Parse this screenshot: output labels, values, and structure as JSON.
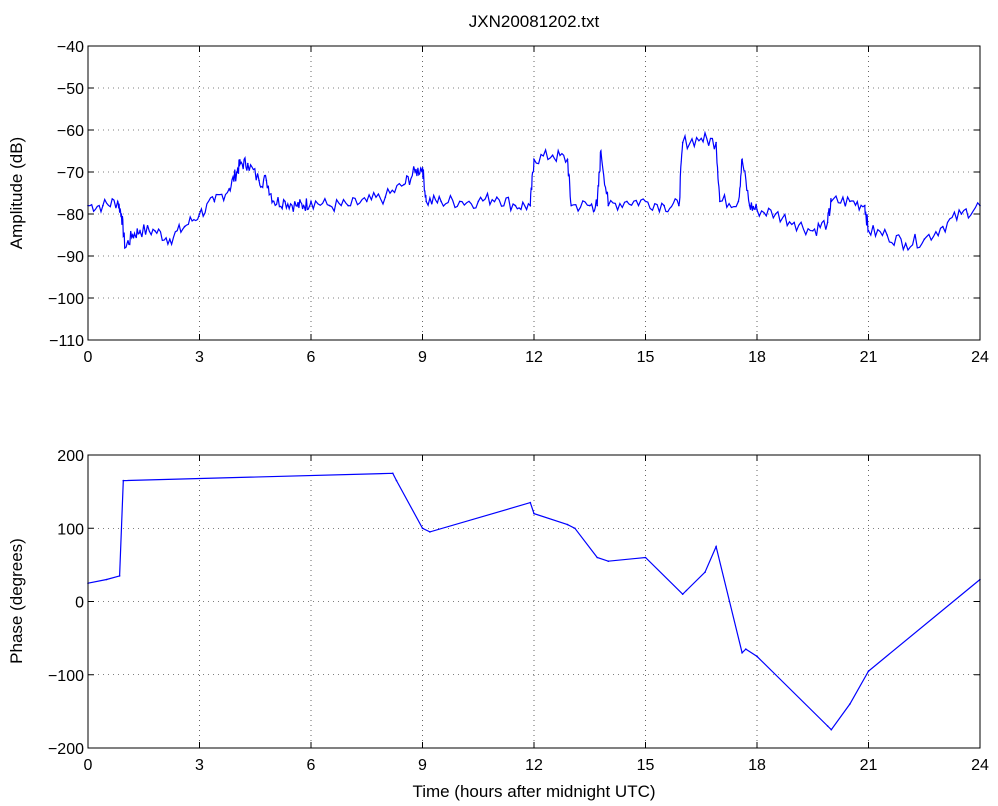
{
  "chart_data": [
    {
      "type": "line",
      "title": "JXN20081202.txt",
      "xlabel": "",
      "ylabel": "Amplitude (dB)",
      "xlim": [
        0,
        24
      ],
      "ylim": [
        -110,
        -40
      ],
      "xticks": [
        0,
        3,
        6,
        9,
        12,
        15,
        18,
        21,
        24
      ],
      "yticks": [
        -110,
        -100,
        -90,
        -80,
        -70,
        -60,
        -50,
        -40
      ],
      "xtick_labels": [
        "0",
        "3",
        "6",
        "9",
        "12",
        "15",
        "18",
        "21",
        "24"
      ],
      "ytick_labels": [
        "−110",
        "−100",
        "−90",
        "−80",
        "−70",
        "−60",
        "−50",
        "−40"
      ],
      "grid": true,
      "line_color": "#0000ff",
      "series": [
        {
          "x": [
            0,
            0.4,
            0.8,
            0.9,
            1.0,
            1.2,
            1.4,
            1.8,
            2.2,
            2.6,
            3.0,
            3.4,
            3.8,
            4.0,
            4.1,
            4.3,
            4.6,
            4.8,
            5.0,
            5.3,
            5.6,
            5.8,
            6.0,
            6.5,
            7.0,
            7.5,
            8.0,
            8.5,
            8.8,
            9.0,
            9.1,
            9.5,
            10.0,
            10.5,
            11.0,
            11.5,
            11.9,
            12.0,
            12.5,
            12.9,
            13.0,
            13.5,
            13.7,
            13.8,
            14.0,
            14.5,
            15.0,
            15.5,
            15.9,
            16.0,
            16.5,
            16.9,
            17.0,
            17.5,
            17.6,
            17.8,
            18.0,
            18.5,
            19.0,
            19.5,
            19.9,
            20.0,
            20.5,
            20.9,
            21.0,
            21.5,
            22.0,
            22.5,
            23.0,
            23.5,
            24.0
          ],
          "y": [
            -78,
            -78,
            -77,
            -80,
            -88,
            -85,
            -84,
            -84,
            -86,
            -83,
            -80,
            -77,
            -74,
            -70,
            -68,
            -68,
            -72,
            -72,
            -77,
            -77,
            -78,
            -78,
            -77,
            -78,
            -78,
            -77,
            -76,
            -73,
            -70,
            -69,
            -77,
            -77,
            -77,
            -77,
            -76,
            -78,
            -78,
            -67,
            -66,
            -67,
            -78,
            -78,
            -78,
            -65,
            -78,
            -77,
            -77,
            -78,
            -78,
            -63,
            -62,
            -63,
            -77,
            -77,
            -67,
            -78,
            -79,
            -80,
            -82,
            -84,
            -82,
            -77,
            -77,
            -78,
            -84,
            -85,
            -87,
            -86,
            -83,
            -80,
            -78
          ]
        }
      ]
    },
    {
      "type": "line",
      "title": "",
      "xlabel": "Time (hours after midnight UTC)",
      "ylabel": "Phase (degrees)",
      "xlim": [
        0,
        24
      ],
      "ylim": [
        -200,
        200
      ],
      "xticks": [
        0,
        3,
        6,
        9,
        12,
        15,
        18,
        21,
        24
      ],
      "yticks": [
        -200,
        -100,
        0,
        100,
        200
      ],
      "xtick_labels": [
        "0",
        "3",
        "6",
        "9",
        "12",
        "15",
        "18",
        "21",
        "24"
      ],
      "ytick_labels": [
        "−200",
        "−100",
        "0",
        "100",
        "200"
      ],
      "grid": true,
      "line_color": "#0000ff",
      "series": [
        {
          "x": [
            0,
            0.5,
            0.85,
            0.95,
            8.2,
            8.3,
            9.0,
            9.2,
            11.9,
            12.0,
            12.9,
            13.1,
            13.7,
            14.0,
            15.0,
            16.0,
            16.1,
            16.6,
            16.9,
            17.6,
            17.7,
            18.0,
            19.9,
            20.0,
            20.5,
            21.0,
            24.0
          ],
          "y": [
            25,
            30,
            35,
            165,
            175,
            165,
            100,
            95,
            135,
            120,
            105,
            100,
            60,
            55,
            60,
            10,
            15,
            40,
            75,
            -70,
            -65,
            -75,
            -170,
            -175,
            -140,
            -95,
            30
          ]
        }
      ]
    }
  ]
}
